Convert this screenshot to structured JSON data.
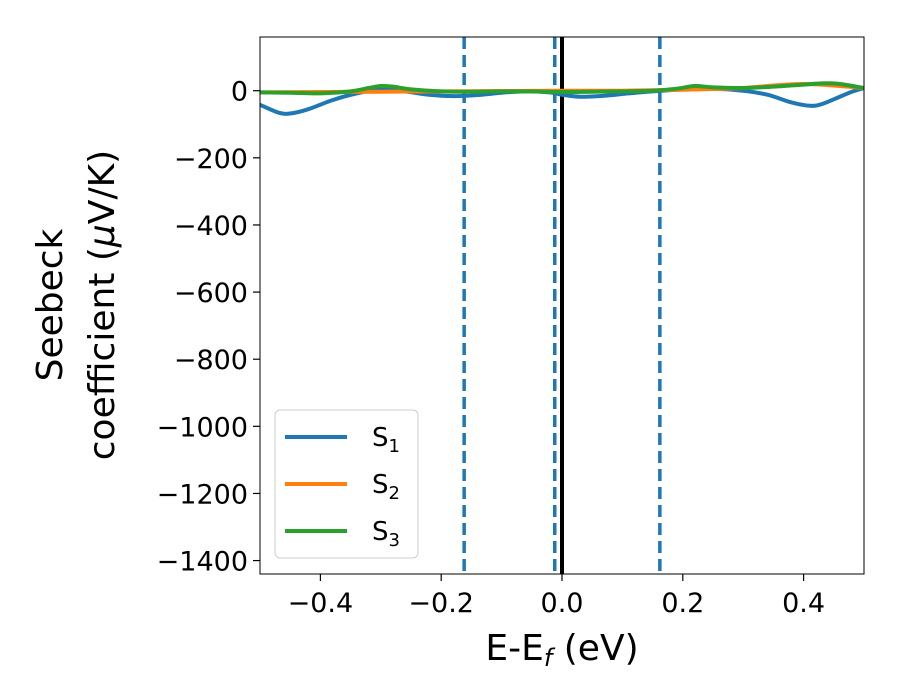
{
  "chart_data": {
    "type": "line",
    "title": "",
    "xlabel": "E-E",
    "xlabel_sub": "f",
    "xlabel_unit": " (eV)",
    "ylabel_line1": "Seebeck",
    "ylabel_line2": "coefficient  (",
    "ylabel_mu": "μ",
    "ylabel_unit": "V/K)",
    "xlim": [
      -0.5,
      0.5
    ],
    "ylim": [
      -1440,
      160
    ],
    "x_ticks": [
      -0.4,
      -0.2,
      0.0,
      0.2,
      0.4
    ],
    "x_tick_labels": [
      "−0.4",
      "−0.2",
      "0.0",
      "0.2",
      "0.4"
    ],
    "y_ticks": [
      0,
      -200,
      -400,
      -600,
      -800,
      -1000,
      -1200,
      -1400
    ],
    "y_tick_labels": [
      "0",
      "−200",
      "−400",
      "−600",
      "−800",
      "−1000",
      "−1200",
      "−1400"
    ],
    "grid": false,
    "legend_position": "lower-left",
    "vertical_lines": [
      {
        "x": -0.162,
        "style": "dashed",
        "color": "#1f77b4"
      },
      {
        "x": -0.012,
        "style": "dashed",
        "color": "#1f77b4"
      },
      {
        "x": 0.0,
        "style": "solid",
        "color": "#000000"
      },
      {
        "x": 0.162,
        "style": "dashed",
        "color": "#1f77b4"
      }
    ],
    "series": [
      {
        "name": "S",
        "sub": "1",
        "color": "#1f77b4",
        "x": [
          -0.5,
          -0.47,
          -0.45,
          -0.42,
          -0.38,
          -0.34,
          -0.3,
          -0.26,
          -0.22,
          -0.18,
          -0.14,
          -0.1,
          -0.06,
          -0.02,
          0.0,
          0.03,
          0.07,
          0.11,
          0.15,
          0.2,
          0.25,
          0.3,
          0.34,
          0.38,
          0.41,
          0.43,
          0.46,
          0.48,
          0.5
        ],
        "values": [
          -42,
          -65,
          -68,
          -55,
          -28,
          -8,
          4,
          -2,
          -12,
          -16,
          -13,
          -6,
          -2,
          -5,
          -12,
          -18,
          -15,
          -8,
          -2,
          4,
          6,
          0,
          -12,
          -35,
          -45,
          -40,
          -18,
          -3,
          8
        ]
      },
      {
        "name": "S",
        "sub": "2",
        "color": "#ff7f0e",
        "x": [
          -0.5,
          -0.4,
          -0.3,
          -0.2,
          -0.1,
          0.0,
          0.1,
          0.2,
          0.25,
          0.3,
          0.4,
          0.5
        ],
        "values": [
          -5,
          -4,
          -3,
          -2,
          -1,
          0,
          0,
          3,
          5,
          8,
          20,
          8
        ]
      },
      {
        "name": "S",
        "sub": "3",
        "color": "#2ca02c",
        "x": [
          -0.5,
          -0.45,
          -0.4,
          -0.35,
          -0.32,
          -0.3,
          -0.28,
          -0.25,
          -0.2,
          -0.15,
          -0.1,
          -0.05,
          0.0,
          0.05,
          0.1,
          0.15,
          0.19,
          0.22,
          0.25,
          0.3,
          0.35,
          0.4,
          0.43,
          0.46,
          0.5
        ],
        "values": [
          -5,
          -6,
          -8,
          -2,
          8,
          14,
          12,
          4,
          -2,
          -3,
          -2,
          -2,
          -4,
          -3,
          -2,
          0,
          6,
          14,
          10,
          8,
          12,
          18,
          22,
          20,
          8
        ]
      }
    ]
  }
}
